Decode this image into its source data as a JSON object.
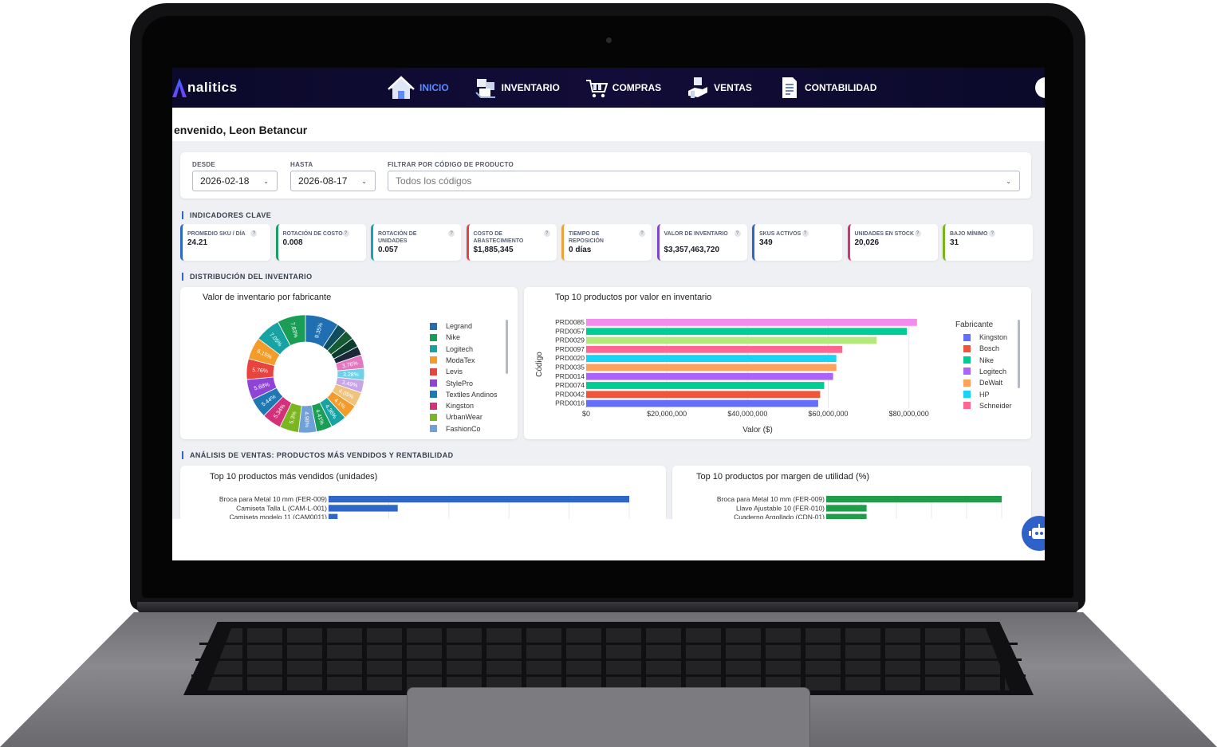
{
  "app": {
    "brand": "nalitics"
  },
  "nav": {
    "items": [
      {
        "label": "INICIO",
        "icon": "home-icon",
        "active": true
      },
      {
        "label": "INVENTARIO",
        "icon": "inventory-boxes-icon",
        "active": false
      },
      {
        "label": "COMPRAS",
        "icon": "shopping-cart-icon",
        "active": false
      },
      {
        "label": "VENTAS",
        "icon": "sales-hand-icon",
        "active": false
      },
      {
        "label": "CONTABILIDAD",
        "icon": "document-icon",
        "active": false
      }
    ],
    "user_icon": "user-gear-icon"
  },
  "welcome": "envenido, Leon Betancur",
  "filters": {
    "from_label": "DESDE",
    "from_value": "2026-02-18",
    "to_label": "HASTA",
    "to_value": "2026-08-17",
    "code_label": "FILTRAR POR CÓDIGO DE PRODUCTO",
    "code_value": "Todos los códigos"
  },
  "sections": {
    "kpis": "INDICADORES CLAVE",
    "distribution": "DISTRIBUCIÓN DEL INVENTARIO",
    "sales": "ANÁLISIS DE VENTAS: PRODUCTOS MÁS VENDIDOS Y RENTABILIDAD"
  },
  "kpis": [
    {
      "label": "PROMEDIO SKU / DÍA",
      "value": "24.21",
      "color": "#2c67c9"
    },
    {
      "label": "ROTACIÓN DE COSTO",
      "value": "0.008",
      "color": "#1e9e67"
    },
    {
      "label": "ROTACIÓN DE UNIDADES",
      "value": "0.057",
      "color": "#1aa3b5"
    },
    {
      "label": "COSTO DE ABASTECIMIENTO",
      "value": "$1,885,345",
      "color": "#e0463e"
    },
    {
      "label": "TIEMPO DE REPOSICIÓN",
      "value": "0 días",
      "color": "#f2a03a"
    },
    {
      "label": "VALOR DE INVENTARIO",
      "value": "$3,357,463,720",
      "color": "#7a48c9"
    },
    {
      "label": "SKUS ACTIVOS",
      "value": "349",
      "color": "#2c67c9"
    },
    {
      "label": "UNIDADES EN STOCK",
      "value": "20,026",
      "color": "#d2327a"
    },
    {
      "label": "BAJO MÍNIMO",
      "value": "31",
      "color": "#79b51f"
    }
  ],
  "help_glyph": "?",
  "chart_data": [
    {
      "type": "pie",
      "title": "Valor de inventario por fabricante",
      "legend_position": "right",
      "legend": [
        {
          "name": "Legrand",
          "color": "#1f6fb2"
        },
        {
          "name": "Nike",
          "color": "#1a9e55"
        },
        {
          "name": "Logitech",
          "color": "#17a3a3"
        },
        {
          "name": "ModaTex",
          "color": "#f39c2a"
        },
        {
          "name": "Levis",
          "color": "#e8433c"
        },
        {
          "name": "StylePro",
          "color": "#8e44d6"
        },
        {
          "name": "Textiles Andinos",
          "color": "#1f77b4"
        },
        {
          "name": "Kingston",
          "color": "#d6307a"
        },
        {
          "name": "UrbanWear",
          "color": "#7bb51f"
        },
        {
          "name": "FashionCo",
          "color": "#6fa0d8"
        }
      ],
      "slices": [
        {
          "value": 9.35,
          "label": "9.35%",
          "color": "#1f6fb2"
        },
        {
          "value": 2.8,
          "label": "",
          "color": "#0f4c5c"
        },
        {
          "value": 2.7,
          "label": "",
          "color": "#145a32"
        },
        {
          "value": 2.6,
          "label": "",
          "color": "#0b3d2e"
        },
        {
          "value": 2.5,
          "label": "",
          "color": "#1b2838"
        },
        {
          "value": 3.76,
          "label": "3.76%",
          "color": "#e377c2"
        },
        {
          "value": 3.28,
          "label": "3.28%",
          "color": "#6fd0e8"
        },
        {
          "value": 3.49,
          "label": "3.49%",
          "color": "#c7a6e8"
        },
        {
          "value": 4.05,
          "label": "4.05%",
          "color": "#f0c27a"
        },
        {
          "value": 4.1,
          "label": "4.1%",
          "color": "#f39c2a"
        },
        {
          "value": 4.36,
          "label": "4.36%",
          "color": "#17a3a3"
        },
        {
          "value": 4.41,
          "label": "4.41%",
          "color": "#1a9e55"
        },
        {
          "value": 4.98,
          "label": "4.98%",
          "color": "#6fa0d8"
        },
        {
          "value": 5.3,
          "label": "5.3%",
          "color": "#7bb51f"
        },
        {
          "value": 5.34,
          "label": "5.34%",
          "color": "#d6307a"
        },
        {
          "value": 5.44,
          "label": "5.44%",
          "color": "#1f77b4"
        },
        {
          "value": 5.68,
          "label": "5.68%",
          "color": "#8e44d6"
        },
        {
          "value": 5.76,
          "label": "5.76%",
          "color": "#e8433c"
        },
        {
          "value": 6.15,
          "label": "6.15%",
          "color": "#f39c2a"
        },
        {
          "value": 7.05,
          "label": "7.05%",
          "color": "#17a3a3"
        },
        {
          "value": 7.83,
          "label": "7.83%",
          "color": "#1a9e55"
        }
      ]
    },
    {
      "type": "bar",
      "orientation": "horizontal",
      "title": "Top 10 productos por valor en inventario",
      "xlabel": "Valor ($)",
      "ylabel": "Código",
      "xlim": [
        0,
        85000000
      ],
      "xticks": [
        {
          "value": 0,
          "label": "$0"
        },
        {
          "value": 20000000,
          "label": "$20,000,000"
        },
        {
          "value": 40000000,
          "label": "$40,000,000"
        },
        {
          "value": 60000000,
          "label": "$60,000,000"
        },
        {
          "value": 80000000,
          "label": "$80,000,000"
        }
      ],
      "legend_title": "Fabricante",
      "legend_position": "right",
      "legend": [
        {
          "name": "Kingston",
          "color": "#636efa"
        },
        {
          "name": "Bosch",
          "color": "#ef553b"
        },
        {
          "name": "Nike",
          "color": "#00cc96"
        },
        {
          "name": "Logitech",
          "color": "#ab63fa"
        },
        {
          "name": "DeWalt",
          "color": "#ffa15a"
        },
        {
          "name": "HP",
          "color": "#19d3f3"
        },
        {
          "name": "Schneider",
          "color": "#ff6692"
        }
      ],
      "categories": [
        "PRD0085",
        "PRD0057",
        "PRD0029",
        "PRD0097",
        "PRD0020",
        "PRD0035",
        "PRD0014",
        "PRD0074",
        "PRD0042",
        "PRD0016"
      ],
      "values": [
        82000000,
        79500000,
        72000000,
        63500000,
        62000000,
        62000000,
        61200000,
        59000000,
        58000000,
        57500000
      ],
      "colors": [
        "#f48cf0",
        "#00cc96",
        "#b6e880",
        "#ff6692",
        "#19d3f3",
        "#ffa15a",
        "#ab63fa",
        "#00cc96",
        "#ef553b",
        "#636efa"
      ]
    },
    {
      "type": "bar",
      "orientation": "horizontal",
      "title": "Top 10 productos más vendidos (unidades)",
      "xlim": [
        0,
        100
      ],
      "categories": [
        "Broca para Metal 10 mm (FER-009)",
        "Camiseta Talla L (CAM-L-001)",
        "Camiseta modelo 11 (CAM0011)"
      ],
      "values": [
        100,
        23,
        3
      ],
      "color": "#2c67c9"
    },
    {
      "type": "bar",
      "orientation": "horizontal",
      "title": "Top 10 productos por margen de utilidad (%)",
      "xlim": [
        0,
        100
      ],
      "categories": [
        "Broca para Metal 10 mm (FER-009)",
        "Llave Ajustable 10 (FER-010)",
        "Cuaderno Argollado (CDN-01)"
      ],
      "values": [
        100,
        23,
        23
      ],
      "color": "#1f9e4a"
    }
  ],
  "assistant_icon": "chat-robot-icon"
}
